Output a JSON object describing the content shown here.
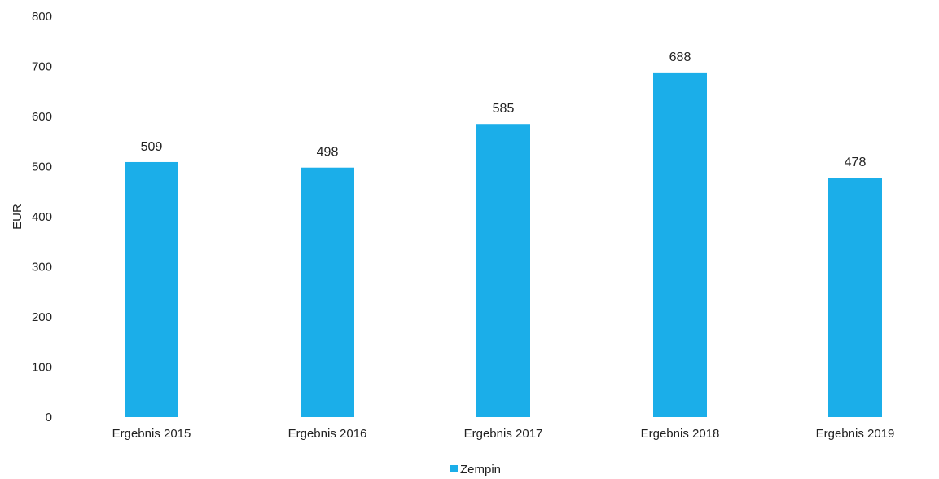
{
  "chart_data": {
    "type": "bar",
    "categories": [
      "Ergebnis 2015",
      "Ergebnis 2016",
      "Ergebnis 2017",
      "Ergebnis 2018",
      "Ergebnis 2019"
    ],
    "series": [
      {
        "name": "Zempin",
        "values": [
          509,
          498,
          585,
          688,
          478
        ]
      }
    ],
    "data_labels": [
      "509",
      "498",
      "585",
      "688",
      "478"
    ],
    "y_ticks": [
      "0",
      "100",
      "200",
      "300",
      "400",
      "500",
      "600",
      "700",
      "800"
    ],
    "title": "",
    "xlabel": "",
    "ylabel": "EUR",
    "ylim": [
      0,
      800
    ],
    "grid": false,
    "legend": {
      "position": "bottom",
      "entries": [
        "Zempin"
      ]
    },
    "colors": {
      "bar": "#1BAEE9",
      "text": "#222222"
    }
  }
}
